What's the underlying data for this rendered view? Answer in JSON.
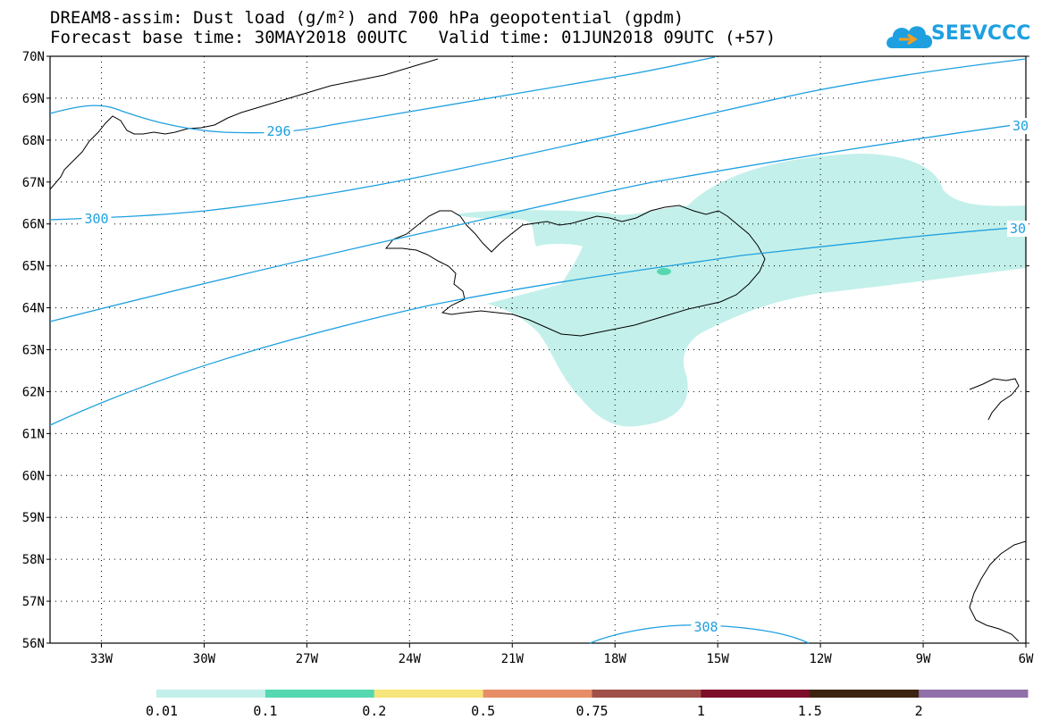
{
  "title": {
    "line1": "DREAM8-assim: Dust load (g/m²) and 700 hPa geopotential (gpdm)",
    "line2": "Forecast base time: 30MAY2018 00UTC   Valid time: 01JUN2018 09UTC (+57)"
  },
  "logo": {
    "text": "SEEVCCC",
    "color": "#1ea0e0"
  },
  "map": {
    "lat_range": [
      56,
      70
    ],
    "lon_range": [
      -34.5,
      -6
    ],
    "lat_labels": [
      "70N",
      "69N",
      "68N",
      "67N",
      "66N",
      "65N",
      "64N",
      "63N",
      "62N",
      "61N",
      "60N",
      "59N",
      "58N",
      "57N",
      "56N"
    ],
    "lon_labels": [
      "33W",
      "30W",
      "27W",
      "24W",
      "21W",
      "18W",
      "15W",
      "12W",
      "9W",
      "6W"
    ],
    "grid": "dotted",
    "contour_color": "#1ea0e0",
    "contour_labels": [
      "296",
      "300",
      "30",
      "30",
      "308"
    ],
    "dust_fill_color": "#c3f0ea",
    "dust_core_color": "#55d8b0"
  },
  "colorbar": {
    "colors": [
      "#c3f0ea",
      "#55d8b0",
      "#f5e57a",
      "#e88e66",
      "#a05048",
      "#7c0e2a",
      "#3c2410",
      "#9070a8"
    ],
    "labels": [
      "0.01",
      "0.1",
      "0.2",
      "0.5",
      "0.75",
      "1",
      "1.5",
      "2"
    ]
  }
}
